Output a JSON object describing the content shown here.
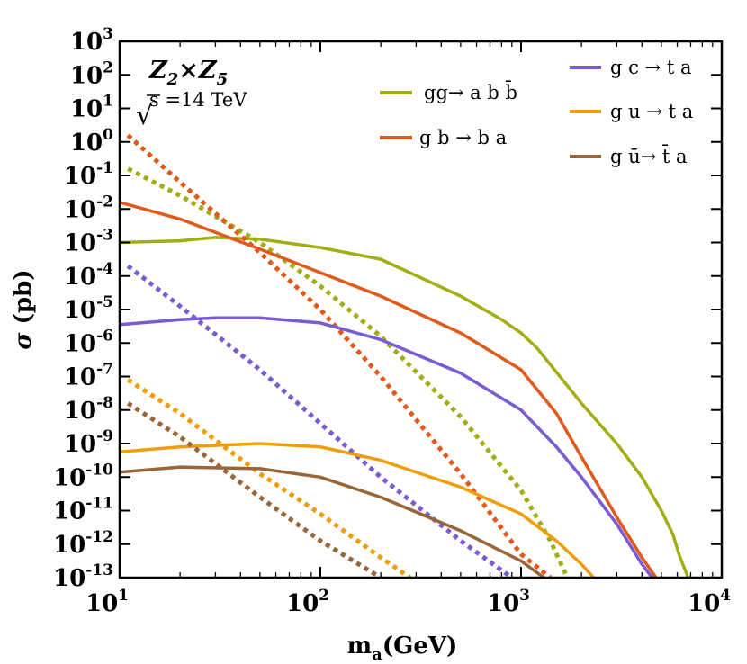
{
  "chart_data": {
    "type": "line",
    "title": "",
    "xlabel": {
      "base": "m",
      "sub": "a",
      "rest": "(GeV)"
    },
    "ylabel": {
      "symbol": "σ",
      "rest": " (pb)"
    },
    "x_scale": "log",
    "y_scale": "log",
    "xlim_exp": [
      1,
      4
    ],
    "ylim_exp": [
      -13,
      3
    ],
    "x_ticks": [
      {
        "base": "10",
        "exp": "1"
      },
      {
        "base": "10",
        "exp": "2"
      },
      {
        "base": "10",
        "exp": "3"
      },
      {
        "base": "10",
        "exp": "4"
      }
    ],
    "y_ticks": [
      {
        "base": "10",
        "exp": "3"
      },
      {
        "base": "10",
        "exp": "2"
      },
      {
        "base": "10",
        "exp": "1"
      },
      {
        "base": "10",
        "exp": "0"
      },
      {
        "base": "10",
        "exp": "-1"
      },
      {
        "base": "10",
        "exp": "-2"
      },
      {
        "base": "10",
        "exp": "-3"
      },
      {
        "base": "10",
        "exp": "-4"
      },
      {
        "base": "10",
        "exp": "-5"
      },
      {
        "base": "10",
        "exp": "-6"
      },
      {
        "base": "10",
        "exp": "-7"
      },
      {
        "base": "10",
        "exp": "-8"
      },
      {
        "base": "10",
        "exp": "-9"
      },
      {
        "base": "10",
        "exp": "-10"
      },
      {
        "base": "10",
        "exp": "-11"
      },
      {
        "base": "10",
        "exp": "-12"
      },
      {
        "base": "10",
        "exp": "-13"
      }
    ],
    "annotations": {
      "model": {
        "a": "Z",
        "a_sub": "2",
        "times": "×",
        "b": "Z",
        "b_sub": "5"
      },
      "energy": {
        "sqrt": "√",
        "text": "s =14 TeV"
      }
    },
    "legend": [
      {
        "label": "gg→ a b b̄",
        "color": "#a3ae14"
      },
      {
        "label": "g b → b a",
        "color": "#e05a1c"
      },
      {
        "label": "g c → t a",
        "color": "#7b5bd4"
      },
      {
        "label": "g u → t a",
        "color": "#f09d0a"
      },
      {
        "label": "g ū→ t̄ a",
        "color": "#99663a"
      }
    ],
    "series": [
      {
        "name": "gg→ a b b̄ (solid)",
        "color": "#a3ae14",
        "style": "solid",
        "x": [
          10,
          20,
          30,
          50,
          100,
          200,
          500,
          800,
          1000,
          1200,
          2000,
          3000,
          4000,
          5000,
          5700,
          6200,
          6800
        ],
        "y_exp": [
          -3.0,
          -2.95,
          -2.85,
          -2.9,
          -3.15,
          -3.5,
          -4.6,
          -5.3,
          -5.7,
          -6.15,
          -7.8,
          -9.0,
          -10.0,
          -11.0,
          -11.7,
          -12.4,
          -13.0
        ]
      },
      {
        "name": "gg→ a b b̄ (dotted)",
        "color": "#a3ae14",
        "style": "dotted",
        "x": [
          11,
          20,
          50,
          100,
          200,
          500,
          1000,
          1400,
          1700
        ],
        "y_exp": [
          -0.8,
          -1.6,
          -3.0,
          -4.3,
          -5.8,
          -8.2,
          -10.4,
          -11.9,
          -13.0
        ]
      },
      {
        "name": "g b → b a (solid)",
        "color": "#e05a1c",
        "style": "solid",
        "x": [
          10,
          20,
          50,
          100,
          200,
          500,
          1000,
          1500,
          2000,
          3000,
          4000,
          4700
        ],
        "y_exp": [
          -1.8,
          -2.3,
          -3.2,
          -3.9,
          -4.6,
          -5.7,
          -6.8,
          -8.1,
          -9.4,
          -11.2,
          -12.4,
          -13.0
        ]
      },
      {
        "name": "g b → b a (dotted)",
        "color": "#e05a1c",
        "style": "dotted",
        "x": [
          11,
          20,
          50,
          100,
          200,
          500,
          1000,
          1400
        ],
        "y_exp": [
          0.2,
          -1.2,
          -3.3,
          -5.0,
          -7.0,
          -9.9,
          -12.3,
          -13.0
        ]
      },
      {
        "name": "g c → t a (solid)",
        "color": "#7b5bd4",
        "style": "solid",
        "x": [
          10,
          20,
          30,
          50,
          100,
          200,
          500,
          1000,
          1500,
          2000,
          3000,
          4000,
          4500
        ],
        "y_exp": [
          -5.45,
          -5.3,
          -5.25,
          -5.25,
          -5.4,
          -5.9,
          -6.9,
          -8.0,
          -9.1,
          -10.0,
          -11.4,
          -12.6,
          -13.0
        ]
      },
      {
        "name": "g c → t a (dotted)",
        "color": "#7b5bd4",
        "style": "dotted",
        "x": [
          11,
          20,
          50,
          100,
          200,
          500,
          900
        ],
        "y_exp": [
          -3.7,
          -4.9,
          -6.8,
          -8.4,
          -10.0,
          -11.9,
          -13.0
        ]
      },
      {
        "name": "g u → t a (solid)",
        "color": "#f09d0a",
        "style": "solid",
        "x": [
          10,
          20,
          50,
          100,
          200,
          500,
          1000,
          1500,
          2000,
          2300
        ],
        "y_exp": [
          -9.25,
          -9.1,
          -9.0,
          -9.1,
          -9.5,
          -10.3,
          -11.1,
          -11.9,
          -12.6,
          -13.0
        ]
      },
      {
        "name": "g u → t a (dotted)",
        "color": "#f09d0a",
        "style": "dotted",
        "x": [
          11,
          20,
          50,
          100,
          200,
          280
        ],
        "y_exp": [
          -7.1,
          -8.1,
          -9.9,
          -11.1,
          -12.4,
          -13.0
        ]
      },
      {
        "name": "g ū→ t̄ a (solid)",
        "color": "#99663a",
        "style": "solid",
        "x": [
          10,
          20,
          50,
          100,
          200,
          500,
          1000,
          1300
        ],
        "y_exp": [
          -9.85,
          -9.7,
          -9.75,
          -10.0,
          -10.6,
          -11.6,
          -12.5,
          -13.0
        ]
      },
      {
        "name": "g ū→ t̄ a (dotted)",
        "color": "#99663a",
        "style": "dotted",
        "x": [
          11,
          20,
          50,
          100,
          200
        ],
        "y_exp": [
          -7.8,
          -8.8,
          -10.6,
          -11.9,
          -13.0
        ]
      }
    ]
  }
}
